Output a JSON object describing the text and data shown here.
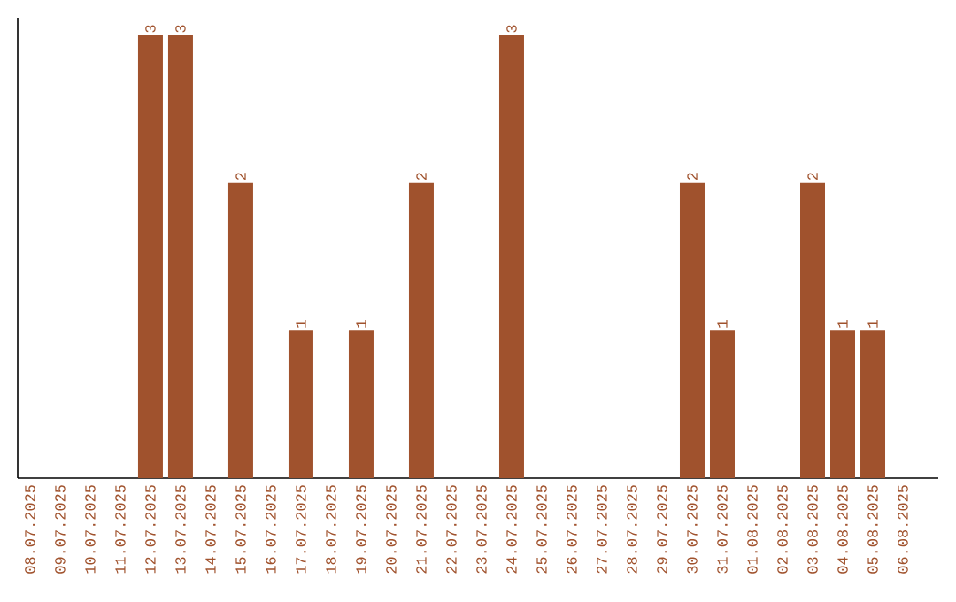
{
  "chart_data": {
    "type": "bar",
    "categories": [
      "08.07.2025",
      "09.07.2025",
      "10.07.2025",
      "11.07.2025",
      "12.07.2025",
      "13.07.2025",
      "14.07.2025",
      "15.07.2025",
      "16.07.2025",
      "17.07.2025",
      "18.07.2025",
      "19.07.2025",
      "20.07.2025",
      "21.07.2025",
      "22.07.2025",
      "23.07.2025",
      "24.07.2025",
      "25.07.2025",
      "26.07.2025",
      "27.07.2025",
      "28.07.2025",
      "29.07.2025",
      "30.07.2025",
      "31.07.2025",
      "01.08.2025",
      "02.08.2025",
      "03.08.2025",
      "04.08.2025",
      "05.08.2025",
      "06.08.2025"
    ],
    "values": [
      0,
      0,
      0,
      0,
      3,
      3,
      0,
      2,
      0,
      1,
      0,
      1,
      0,
      2,
      0,
      0,
      3,
      0,
      0,
      0,
      0,
      0,
      2,
      1,
      0,
      0,
      2,
      1,
      1,
      0
    ],
    "value_labels": [
      null,
      null,
      null,
      null,
      "3",
      "3",
      null,
      "2",
      null,
      "1",
      null,
      "1",
      null,
      "2",
      null,
      null,
      "3",
      null,
      null,
      null,
      null,
      null,
      "2",
      "1",
      null,
      null,
      "2",
      "1",
      "1",
      null
    ],
    "color": "#a0522d",
    "tick_labels": "x"
  }
}
